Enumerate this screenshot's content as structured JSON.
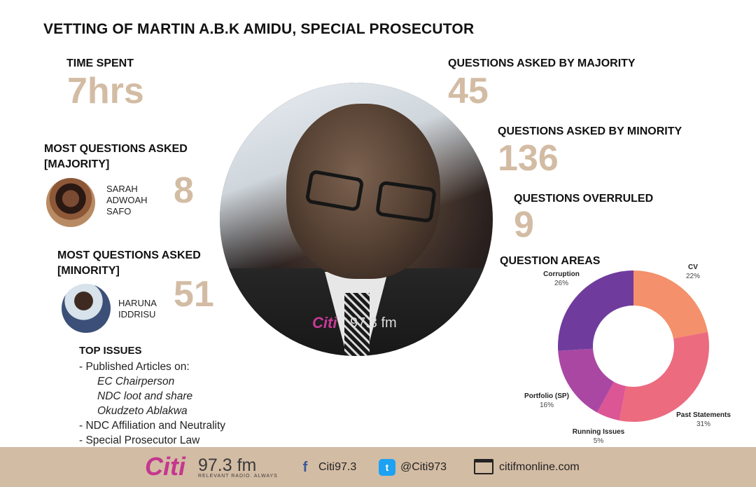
{
  "title": "VETTING OF MARTIN A.B.K AMIDU, SPECIAL PROSECUTOR",
  "time_spent": {
    "label": "TIME SPENT",
    "value": "7hrs"
  },
  "majority_q": {
    "label": "QUESTIONS ASKED BY MAJORITY",
    "value": "45"
  },
  "minority_q": {
    "label": "QUESTIONS ASKED BY MINORITY",
    "value": "136"
  },
  "overruled": {
    "label": "QUESTIONS OVERRULED",
    "value": "9"
  },
  "most_majority": {
    "label_line1": "MOST QUESTIONS ASKED",
    "label_line2": "[MAJORITY]",
    "name_lines": [
      "SARAH",
      "ADWOAH",
      "SAFO"
    ],
    "value": "8"
  },
  "most_minority": {
    "label_line1": "MOST QUESTIONS ASKED",
    "label_line2": "[MINORITY]",
    "name_lines": [
      "HARUNA",
      "IDDRISU"
    ],
    "value": "51"
  },
  "top_issues": {
    "title": "TOP ISSUES",
    "line1": "- Published Articles on:",
    "sub": [
      "EC Chairperson",
      "NDC loot and share",
      "Okudzeto Ablakwa"
    ],
    "line2": "- NDC Affiliation and Neutrality",
    "line3": "- Special Prosecutor Law"
  },
  "watermark": {
    "brand": "Citi",
    "freq": "97.3 fm"
  },
  "chart_data": {
    "type": "pie",
    "title": "QUESTION AREAS",
    "donut": true,
    "slices": [
      {
        "label": "CV",
        "value": 22,
        "display": "22%",
        "color": "#f4906b"
      },
      {
        "label": "Past Statements",
        "value": 31,
        "display": "31%",
        "color": "#ec6b7f"
      },
      {
        "label": "Running Issues",
        "value": 5,
        "display": "5%",
        "color": "#dc5595"
      },
      {
        "label": "Portfolio (SP)",
        "value": 16,
        "display": "16%",
        "color": "#aa47a3"
      },
      {
        "label": "Corruption",
        "value": 26,
        "display": "26%",
        "color": "#6f3c9d"
      }
    ]
  },
  "footer": {
    "brand": "Citi",
    "freq": "97.3 fm",
    "tagline": "RELEVANT RADIO. ALWAYS",
    "facebook": "Citi97.3",
    "twitter": "@Citi973",
    "web": "citifmonline.com"
  }
}
